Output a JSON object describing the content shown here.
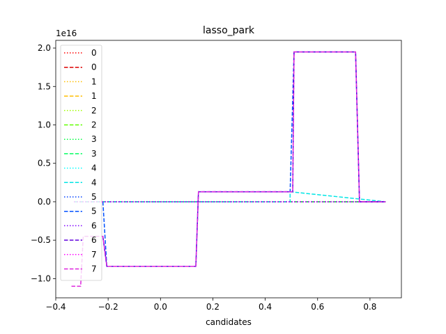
{
  "chart_data": {
    "type": "line",
    "title": "lasso_park",
    "xlabel": "candidates",
    "ylabel": "",
    "y_offset_label": "1e16",
    "xlim": [
      -0.4,
      0.92
    ],
    "ylim": [
      -1.25,
      2.1
    ],
    "x_ticks": [
      -0.4,
      -0.2,
      0.0,
      0.2,
      0.4,
      0.6,
      0.8
    ],
    "x_tick_labels": [
      "−0.4",
      "−0.2",
      "0.0",
      "0.2",
      "0.4",
      "0.6",
      "0.8"
    ],
    "y_ticks": [
      -1.0,
      -0.5,
      0.0,
      0.5,
      1.0,
      1.5,
      2.0
    ],
    "y_tick_labels": [
      "−1.0",
      "−0.5",
      "0.0",
      "0.5",
      "1.0",
      "1.5",
      "2.0"
    ],
    "legend_position": "top-left",
    "series": [
      {
        "name": "0",
        "color": "#ff0000",
        "style": "dotted",
        "x": [
          -0.33,
          0.86
        ],
        "y": [
          0.0,
          0.0
        ]
      },
      {
        "name": "0",
        "color": "#dd0000",
        "style": "dashed",
        "x": [
          -0.33,
          0.86
        ],
        "y": [
          0.0,
          0.0
        ]
      },
      {
        "name": "1",
        "color": "#ffbf00",
        "style": "dotted",
        "x": [
          -0.33,
          0.86
        ],
        "y": [
          0.0,
          0.0
        ]
      },
      {
        "name": "1",
        "color": "#ffbf00",
        "style": "dashed",
        "x": [
          -0.33,
          0.86
        ],
        "y": [
          0.0,
          0.0
        ]
      },
      {
        "name": "2",
        "color": "#a0ff00",
        "style": "dotted",
        "x": [
          -0.33,
          0.86
        ],
        "y": [
          0.0,
          0.0
        ]
      },
      {
        "name": "2",
        "color": "#60ff00",
        "style": "dashed",
        "x": [
          -0.33,
          0.86
        ],
        "y": [
          0.0,
          0.0
        ]
      },
      {
        "name": "3",
        "color": "#00ff40",
        "style": "dotted",
        "x": [
          -0.33,
          0.86
        ],
        "y": [
          0.0,
          0.0
        ]
      },
      {
        "name": "3",
        "color": "#00ff60",
        "style": "dashed",
        "x": [
          -0.33,
          0.86
        ],
        "y": [
          0.0,
          0.0
        ]
      },
      {
        "name": "4",
        "color": "#00ffff",
        "style": "dotted",
        "x": [
          -0.33,
          0.495,
          0.495,
          0.86
        ],
        "y": [
          0.0,
          0.0,
          0.0,
          0.0
        ]
      },
      {
        "name": "4",
        "color": "#00e5e5",
        "style": "dashed",
        "x": [
          -0.33,
          0.495,
          0.495,
          0.86
        ],
        "y": [
          0.0,
          0.0,
          0.13,
          0.0
        ]
      },
      {
        "name": "5",
        "color": "#0040ff",
        "style": "dotted",
        "x": [
          -0.33,
          0.86
        ],
        "y": [
          0.0,
          0.0
        ]
      },
      {
        "name": "5",
        "color": "#0050ff",
        "style": "dashed",
        "x": [
          -0.22,
          -0.205,
          0.135,
          0.145,
          0.495,
          0.51,
          0.745,
          0.76,
          0.86
        ],
        "y": [
          0.0,
          -0.84,
          -0.84,
          0.13,
          0.13,
          1.95,
          1.95,
          0.0,
          0.0
        ]
      },
      {
        "name": "6",
        "color": "#8000ff",
        "style": "dotted",
        "x": [
          -0.33,
          0.86
        ],
        "y": [
          0.0,
          0.0
        ]
      },
      {
        "name": "6",
        "color": "#6000dd",
        "style": "dashed",
        "x": [
          -0.22,
          -0.205,
          0.135,
          0.145,
          0.505,
          0.51,
          0.745,
          0.76,
          0.86
        ],
        "y": [
          -0.45,
          -0.84,
          -0.84,
          0.13,
          0.13,
          1.95,
          1.95,
          0.0,
          0.0
        ]
      },
      {
        "name": "7",
        "color": "#ff00ff",
        "style": "dotted",
        "x": [
          -0.33,
          0.86
        ],
        "y": [
          0.0,
          0.0
        ]
      },
      {
        "name": "7",
        "color": "#dd22dd",
        "style": "dashed",
        "x": [
          -0.34,
          -0.305,
          -0.295,
          -0.22,
          -0.205,
          0.135,
          0.145,
          0.505,
          0.51,
          0.745,
          0.76,
          0.86
        ],
        "y": [
          -1.1,
          -1.1,
          -0.45,
          -0.45,
          -0.84,
          -0.84,
          0.13,
          0.13,
          1.95,
          1.95,
          0.0,
          0.0
        ]
      }
    ]
  }
}
